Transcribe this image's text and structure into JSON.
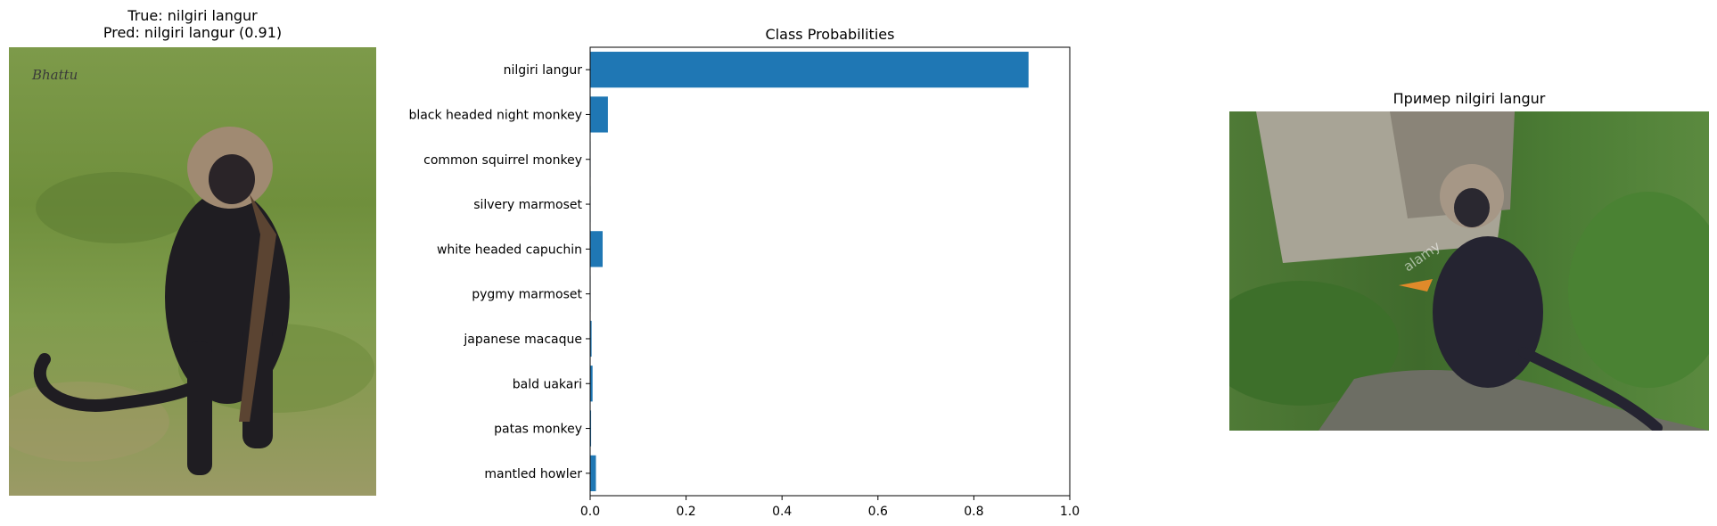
{
  "left_panel": {
    "title_line1": "True: nilgiri langur",
    "title_line2": "Pred: nilgiri langur (0.91)",
    "photo_watermark": "Bhattu"
  },
  "right_panel": {
    "title": "Пример nilgiri langur",
    "photo_watermark": "alamy"
  },
  "chart_data": {
    "type": "bar",
    "orientation": "horizontal",
    "title": "Class Probabilities",
    "xlabel": "",
    "ylabel": "",
    "xlim": [
      0,
      1.0
    ],
    "xticks": [
      "0.0",
      "0.2",
      "0.4",
      "0.6",
      "0.8",
      "1.0"
    ],
    "categories": [
      "nilgiri langur",
      "black headed night monkey",
      "common squirrel monkey",
      "silvery marmoset",
      "white headed capuchin",
      "pygmy marmoset",
      "japanese macaque",
      "bald uakari",
      "patas monkey",
      "mantled howler"
    ],
    "values": [
      0.914,
      0.037,
      0.001,
      0.001,
      0.026,
      0.001,
      0.003,
      0.005,
      0.002,
      0.012
    ],
    "bar_color": "#1f77b4",
    "grid": false
  }
}
